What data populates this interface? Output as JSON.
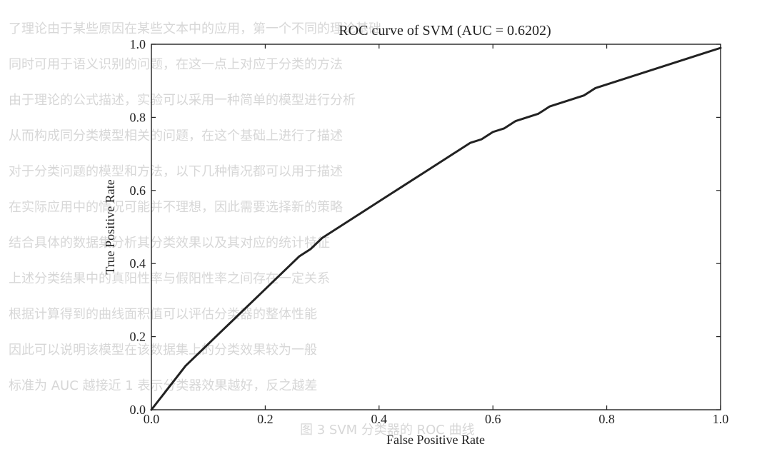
{
  "chart_data": {
    "type": "line",
    "title": "ROC curve of SVM (AUC = 0.6202)",
    "xlabel": "False Positive Rate",
    "ylabel": "True Positive Rate",
    "xlim": [
      0.0,
      1.0
    ],
    "ylim": [
      0.0,
      1.0
    ],
    "xticks": [
      0.0,
      0.2,
      0.4,
      0.6,
      0.8,
      1.0
    ],
    "yticks": [
      0.0,
      0.2,
      0.4,
      0.6,
      0.8,
      1.0
    ],
    "xtick_labels": [
      "0.0",
      "0.2",
      "0.4",
      "0.6",
      "0.8",
      "1.0"
    ],
    "ytick_labels": [
      "0.0",
      "0.2",
      "0.4",
      "0.6",
      "0.8",
      "1.0"
    ],
    "grid": false,
    "legend": null,
    "series": [
      {
        "color": "#222222",
        "x": [
          0.0,
          0.01,
          0.02,
          0.03,
          0.04,
          0.05,
          0.06,
          0.08,
          0.1,
          0.12,
          0.14,
          0.16,
          0.18,
          0.2,
          0.22,
          0.24,
          0.26,
          0.28,
          0.3,
          0.32,
          0.34,
          0.36,
          0.38,
          0.4,
          0.42,
          0.44,
          0.46,
          0.48,
          0.5,
          0.52,
          0.54,
          0.56,
          0.58,
          0.6,
          0.62,
          0.64,
          0.66,
          0.68,
          0.7,
          0.72,
          0.74,
          0.76,
          0.78,
          0.8,
          0.82,
          0.84,
          0.86,
          0.88,
          0.9,
          0.92,
          0.94,
          0.96,
          0.98,
          1.0
        ],
        "y": [
          0.0,
          0.02,
          0.04,
          0.06,
          0.08,
          0.1,
          0.12,
          0.15,
          0.18,
          0.21,
          0.24,
          0.27,
          0.3,
          0.33,
          0.36,
          0.39,
          0.42,
          0.44,
          0.47,
          0.49,
          0.51,
          0.53,
          0.55,
          0.57,
          0.59,
          0.61,
          0.63,
          0.65,
          0.67,
          0.69,
          0.71,
          0.73,
          0.74,
          0.76,
          0.77,
          0.79,
          0.8,
          0.81,
          0.83,
          0.84,
          0.85,
          0.86,
          0.88,
          0.89,
          0.9,
          0.91,
          0.92,
          0.93,
          0.94,
          0.95,
          0.96,
          0.97,
          0.98,
          0.99
        ]
      }
    ]
  }
}
